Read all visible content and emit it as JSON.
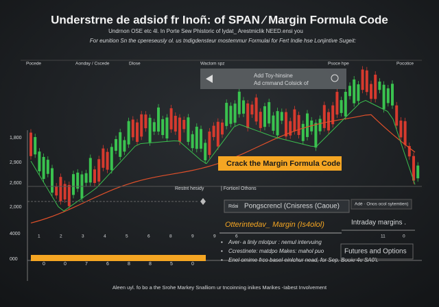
{
  "header": {
    "title": "Understrne de adsiof fr Inoñ: of SPAN ⁄ Margin Formula Code",
    "subtitle": "Undrnon OSE etc 4l. In Porte Sew Phistoric of lydat_ Arestmiclik NEED.ensi you",
    "description": "For eunition Sn the cpereseusly ol. us tndigdensteur mostemmur Formulai for Fert Indie hse Lonjintive Sugeit:"
  },
  "top_labels": [
    "Pocede",
    "Aonday / Cscede",
    "Dlose",
    "Wactom spz",
    "Psoce hpe",
    "Pocotice"
  ],
  "tooltip": {
    "line1": "Add Toy-hinsine",
    "line2": "Ad cmmand Colsick of"
  },
  "y_labels": [
    "1,800",
    "2,900",
    "2,600",
    "2,000",
    "4000",
    "000"
  ],
  "banner": "Crack the Margin Formula Code",
  "panel_labels": {
    "left": "Restnt hesidy",
    "right": "| Fortionl Othons"
  },
  "legend_row": {
    "tag": "Rdai",
    "label": "Pongscrencl (Cnisress (Caoue)",
    "note": "Adé · Onos ocol sytemtien)"
  },
  "margin_heading": "Otterintedav_ Margin (Is4olol)",
  "intraday": "Intraday margins .",
  "x_labels": [
    "1",
    "2",
    "3",
    "4",
    "5",
    "6",
    "8",
    "9",
    "9",
    "6",
    "11",
    "0"
  ],
  "ruler_labels": [
    "0",
    "0",
    "7",
    "6",
    "8",
    "8",
    "5",
    "0"
  ],
  "bullets": [
    "Aver- a linly mlotpur : nemul intervuing",
    "Ccrestinete: matdpo Makes: mahol puo",
    "Enel omime frco basel einlchur nead, for Sep. Booie 4e SA0't."
  ],
  "futures": "Futures and Options",
  "footer": "Aleen uyl. fo bo a the Srohe Markey Snalliom ur tncoinning inikes Marikes -Iabest Involvement"
}
